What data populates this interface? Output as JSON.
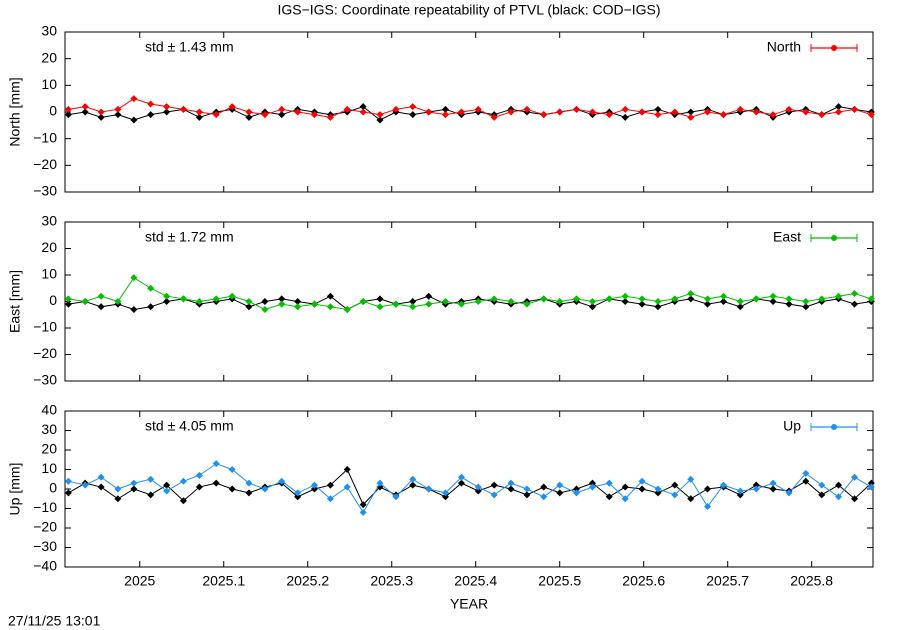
{
  "title": "IGS−IGS: Coordinate repeatability of PTVL (black: COD−IGS)",
  "timestamp": "27/11/25 13:01",
  "chart_data": [
    {
      "type": "line",
      "ylabel": "North [mm]",
      "annotation": "std ± 1.43 mm",
      "xlim": [
        2024.911,
        2025.873
      ],
      "ylim": [
        -30,
        30
      ],
      "yticks": [
        {
          "value": -30,
          "label": "−30"
        },
        {
          "value": -20,
          "label": "−20"
        },
        {
          "value": -10,
          "label": "−10"
        },
        0,
        10,
        20,
        30
      ],
      "x": [
        2024.915,
        2024.935,
        2024.954,
        2024.974,
        2024.993,
        2025.013,
        2025.032,
        2025.052,
        2025.071,
        2025.091,
        2025.11,
        2025.13,
        2025.149,
        2025.169,
        2025.188,
        2025.208,
        2025.227,
        2025.247,
        2025.266,
        2025.286,
        2025.305,
        2025.325,
        2025.344,
        2025.364,
        2025.383,
        2025.403,
        2025.422,
        2025.442,
        2025.461,
        2025.481,
        2025.5,
        2025.52,
        2025.539,
        2025.559,
        2025.578,
        2025.598,
        2025.617,
        2025.637,
        2025.656,
        2025.676,
        2025.695,
        2025.715,
        2025.734,
        2025.754,
        2025.773,
        2025.793,
        2025.812,
        2025.832,
        2025.851,
        2025.871
      ],
      "series": [
        {
          "color": "#000000",
          "values": [
            -1,
            0,
            -2,
            -1,
            -3,
            -1,
            0,
            1,
            -2,
            0,
            1,
            -2,
            0,
            -1,
            1,
            0,
            -1,
            0,
            2,
            -3,
            0,
            -1,
            0,
            1,
            -1,
            0,
            -1,
            1,
            0,
            -1,
            0,
            1,
            -1,
            0,
            -2,
            0,
            1,
            -1,
            0,
            1,
            -1,
            0,
            1,
            -2,
            0,
            1,
            -1,
            2,
            1,
            0
          ]
        },
        {
          "name": "North",
          "color": "#ff0000",
          "values": [
            1,
            2,
            0,
            1,
            5,
            3,
            2,
            1,
            0,
            -1,
            2,
            0,
            -1,
            1,
            0,
            -1,
            -2,
            1,
            0,
            -1,
            1,
            2,
            0,
            -1,
            0,
            1,
            -2,
            0,
            1,
            -1,
            0,
            1,
            0,
            -1,
            1,
            0,
            -1,
            0,
            -2,
            0,
            -1,
            1,
            0,
            -1,
            1,
            0,
            -1,
            0,
            1,
            -1
          ]
        }
      ]
    },
    {
      "type": "line",
      "ylabel": "East [mm]",
      "annotation": "std ± 1.72 mm",
      "xlim": [
        2024.911,
        2025.873
      ],
      "ylim": [
        -30,
        30
      ],
      "yticks": [
        {
          "value": -30,
          "label": "−30"
        },
        {
          "value": -20,
          "label": "−20"
        },
        {
          "value": -10,
          "label": "−10"
        },
        0,
        10,
        20,
        30
      ],
      "x": [
        2024.915,
        2024.935,
        2024.954,
        2024.974,
        2024.993,
        2025.013,
        2025.032,
        2025.052,
        2025.071,
        2025.091,
        2025.11,
        2025.13,
        2025.149,
        2025.169,
        2025.188,
        2025.208,
        2025.227,
        2025.247,
        2025.266,
        2025.286,
        2025.305,
        2025.325,
        2025.344,
        2025.364,
        2025.383,
        2025.403,
        2025.422,
        2025.442,
        2025.461,
        2025.481,
        2025.5,
        2025.52,
        2025.539,
        2025.559,
        2025.578,
        2025.598,
        2025.617,
        2025.637,
        2025.656,
        2025.676,
        2025.695,
        2025.715,
        2025.734,
        2025.754,
        2025.773,
        2025.793,
        2025.812,
        2025.832,
        2025.851,
        2025.871
      ],
      "series": [
        {
          "color": "#000000",
          "values": [
            -1,
            0,
            -2,
            -1,
            -3,
            -2,
            0,
            1,
            -1,
            0,
            1,
            -2,
            0,
            1,
            0,
            -1,
            2,
            -3,
            0,
            1,
            -1,
            0,
            2,
            -1,
            0,
            1,
            0,
            -1,
            0,
            1,
            -1,
            0,
            -2,
            1,
            0,
            -1,
            -2,
            0,
            1,
            -1,
            0,
            -2,
            1,
            0,
            -1,
            -2,
            0,
            1,
            -1,
            0
          ]
        },
        {
          "name": "East",
          "color": "#00c000",
          "values": [
            1,
            0,
            2,
            0,
            9,
            5,
            2,
            1,
            0,
            1,
            2,
            0,
            -3,
            -1,
            -2,
            -1,
            -2,
            -3,
            0,
            -2,
            -1,
            -2,
            -1,
            0,
            -1,
            0,
            1,
            0,
            -1,
            1,
            0,
            1,
            0,
            1,
            2,
            1,
            0,
            1,
            3,
            1,
            2,
            0,
            1,
            2,
            1,
            0,
            1,
            2,
            3,
            1
          ]
        }
      ]
    },
    {
      "type": "line",
      "ylabel": "Up [mm]",
      "annotation": "std ± 4.05 mm",
      "xlabel": "YEAR",
      "xlim": [
        2024.911,
        2025.873
      ],
      "ylim": [
        -40,
        40
      ],
      "xticks": [
        2025,
        2025.1,
        2025.2,
        2025.3,
        2025.4,
        2025.5,
        2025.6,
        2025.7,
        2025.8
      ],
      "yticks": [
        {
          "value": -40,
          "label": "−40"
        },
        {
          "value": -30,
          "label": "−30"
        },
        {
          "value": -20,
          "label": "−20"
        },
        {
          "value": -10,
          "label": "−10"
        },
        0,
        10,
        20,
        30,
        40
      ],
      "x": [
        2024.915,
        2024.935,
        2024.954,
        2024.974,
        2024.993,
        2025.013,
        2025.032,
        2025.052,
        2025.071,
        2025.091,
        2025.11,
        2025.13,
        2025.149,
        2025.169,
        2025.188,
        2025.208,
        2025.227,
        2025.247,
        2025.266,
        2025.286,
        2025.305,
        2025.325,
        2025.344,
        2025.364,
        2025.383,
        2025.403,
        2025.422,
        2025.442,
        2025.461,
        2025.481,
        2025.5,
        2025.52,
        2025.539,
        2025.559,
        2025.578,
        2025.598,
        2025.617,
        2025.637,
        2025.656,
        2025.676,
        2025.695,
        2025.715,
        2025.734,
        2025.754,
        2025.773,
        2025.793,
        2025.812,
        2025.832,
        2025.851,
        2025.871
      ],
      "series": [
        {
          "color": "#000000",
          "values": [
            -2,
            3,
            1,
            -5,
            0,
            -3,
            2,
            -6,
            1,
            3,
            0,
            -2,
            1,
            3,
            -4,
            0,
            2,
            10,
            -8,
            1,
            -3,
            2,
            0,
            -4,
            3,
            -1,
            2,
            0,
            -3,
            1,
            -2,
            0,
            3,
            -4,
            1,
            0,
            -2,
            2,
            -5,
            0,
            1,
            -3,
            2,
            0,
            -1,
            4,
            -3,
            2,
            -5,
            3
          ]
        },
        {
          "name": "Up",
          "color": "#2090f0",
          "values": [
            4,
            2,
            6,
            0,
            3,
            5,
            -1,
            4,
            7,
            13,
            10,
            3,
            0,
            4,
            -2,
            2,
            -5,
            1,
            -12,
            3,
            -4,
            5,
            0,
            -2,
            6,
            1,
            -3,
            3,
            0,
            -4,
            2,
            -2,
            1,
            3,
            -5,
            4,
            0,
            -3,
            5,
            -9,
            2,
            -1,
            0,
            3,
            -2,
            8,
            2,
            -4,
            6,
            1
          ]
        }
      ]
    }
  ]
}
